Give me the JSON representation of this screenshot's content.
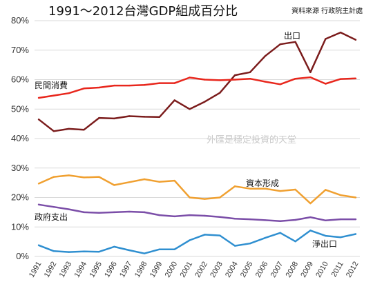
{
  "chart_data": {
    "type": "line",
    "title": "1991～2012台灣GDP組成百分比",
    "source": "資料來源 行政院主計處",
    "watermark": "外匯是穩定投資的天堂",
    "xlabel": "",
    "ylabel": "",
    "ylim": [
      0,
      80
    ],
    "yticks": [
      "0%",
      "10%",
      "20%",
      "30%",
      "40%",
      "50%",
      "60%",
      "70%",
      "80%"
    ],
    "grid": true,
    "legend": "inline labels",
    "categories": [
      "1991",
      "1992",
      "1993",
      "1994",
      "1995",
      "1996",
      "1997",
      "1998",
      "1999",
      "2000",
      "2001",
      "2002",
      "2003",
      "2004",
      "2005",
      "2006",
      "2007",
      "2008",
      "2009",
      "2010",
      "2011",
      "2012"
    ],
    "series": [
      {
        "name": "出口",
        "color": "#7b1c1c",
        "values": [
          46.5,
          42.5,
          43.3,
          43.0,
          47.0,
          46.8,
          47.6,
          47.4,
          47.3,
          53.0,
          50.0,
          52.5,
          55.5,
          61.5,
          62.5,
          68.0,
          72.0,
          72.8,
          62.5,
          73.8,
          76.0,
          73.5
        ]
      },
      {
        "name": "民間消費",
        "color": "#e8261c",
        "values": [
          53.8,
          54.6,
          55.4,
          57.0,
          57.3,
          58.0,
          58.0,
          58.2,
          58.8,
          58.8,
          60.7,
          60.0,
          59.8,
          60.0,
          60.3,
          59.3,
          58.4,
          60.3,
          60.8,
          58.6,
          60.2,
          60.4
        ]
      },
      {
        "name": "資本形成",
        "color": "#f0a030",
        "values": [
          24.7,
          27.0,
          27.5,
          26.8,
          27.0,
          24.2,
          25.2,
          26.2,
          25.3,
          25.7,
          20.0,
          19.5,
          20.0,
          23.8,
          23.0,
          23.0,
          22.2,
          22.7,
          18.0,
          22.6,
          20.8,
          20.0
        ]
      },
      {
        "name": "政府支出",
        "color": "#7b4ea8",
        "values": [
          17.6,
          16.8,
          16.0,
          15.0,
          14.8,
          15.0,
          15.2,
          15.0,
          14.0,
          13.6,
          14.0,
          13.8,
          13.4,
          12.8,
          12.6,
          12.3,
          12.0,
          12.4,
          13.3,
          12.2,
          12.6,
          12.6
        ]
      },
      {
        "name": "淨出口",
        "color": "#2f8fd0",
        "values": [
          3.8,
          1.8,
          1.5,
          1.7,
          1.6,
          3.3,
          2.1,
          1.0,
          2.4,
          2.4,
          5.5,
          7.4,
          7.1,
          3.6,
          4.4,
          6.3,
          8.0,
          5.1,
          8.8,
          7.0,
          6.5,
          7.6
        ]
      }
    ]
  }
}
